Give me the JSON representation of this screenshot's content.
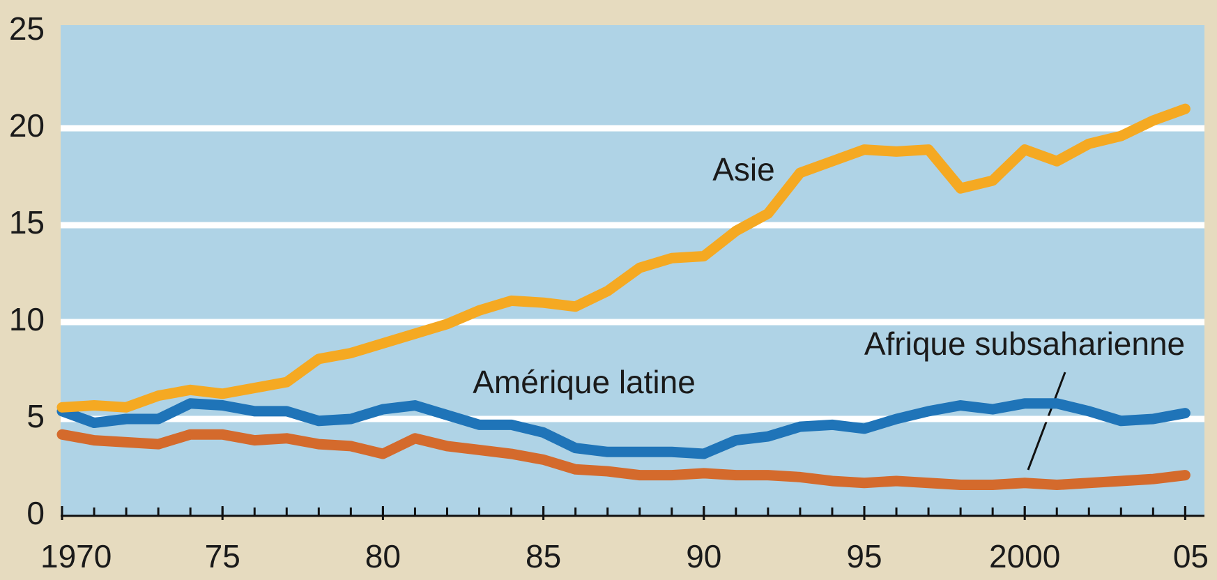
{
  "chart_data": {
    "type": "line",
    "x": [
      1970,
      1971,
      1972,
      1973,
      1974,
      1975,
      1976,
      1977,
      1978,
      1979,
      1980,
      1981,
      1982,
      1983,
      1984,
      1985,
      1986,
      1987,
      1988,
      1989,
      1990,
      1991,
      1992,
      1993,
      1994,
      1995,
      1996,
      1997,
      1998,
      1999,
      2000,
      2001,
      2002,
      2003,
      2004,
      2005
    ],
    "series": [
      {
        "name": "Asie",
        "color": "#f5a922",
        "values": [
          5.6,
          5.7,
          5.6,
          6.2,
          6.5,
          6.3,
          6.6,
          6.9,
          8.1,
          8.4,
          8.9,
          9.4,
          9.9,
          10.6,
          11.1,
          11.0,
          10.8,
          11.6,
          12.8,
          13.3,
          13.4,
          14.7,
          15.6,
          17.7,
          18.3,
          18.9,
          18.8,
          18.9,
          16.9,
          17.3,
          18.9,
          18.3,
          19.2,
          19.6,
          20.4,
          21.0
        ]
      },
      {
        "name": "Amérique latine",
        "color": "#1f74b8",
        "values": [
          5.4,
          4.8,
          5.0,
          5.0,
          5.8,
          5.7,
          5.4,
          5.4,
          4.9,
          5.0,
          5.5,
          5.7,
          5.2,
          4.7,
          4.7,
          4.3,
          3.5,
          3.3,
          3.3,
          3.3,
          3.2,
          3.9,
          4.1,
          4.6,
          4.7,
          4.5,
          5.0,
          5.4,
          5.7,
          5.5,
          5.8,
          5.8,
          5.4,
          4.9,
          5.0,
          5.3
        ]
      },
      {
        "name": "Afrique subsaharienne",
        "color": "#d46a2c",
        "values": [
          4.2,
          3.9,
          3.8,
          3.7,
          4.2,
          4.2,
          3.9,
          4.0,
          3.7,
          3.6,
          3.2,
          4.0,
          3.6,
          3.4,
          3.2,
          2.9,
          2.4,
          2.3,
          2.1,
          2.1,
          2.2,
          2.1,
          2.1,
          2.0,
          1.8,
          1.7,
          1.8,
          1.7,
          1.6,
          1.6,
          1.7,
          1.6,
          1.7,
          1.8,
          1.9,
          2.1
        ]
      }
    ],
    "xlim": [
      1970,
      2005.6
    ],
    "xticks": [
      1970,
      {
        "value": 1975,
        "label": "75"
      },
      {
        "value": 1980,
        "label": "80"
      },
      {
        "value": 1985,
        "label": "85"
      },
      {
        "value": 1990,
        "label": "90"
      },
      {
        "value": 1995,
        "label": "95"
      },
      {
        "value": 2000,
        "label": "2000"
      },
      {
        "value": 2005,
        "label": "05"
      }
    ],
    "ylim": [
      0,
      25
    ],
    "yticks": [
      0,
      5,
      10,
      15,
      20,
      25
    ],
    "grid": true
  }
}
